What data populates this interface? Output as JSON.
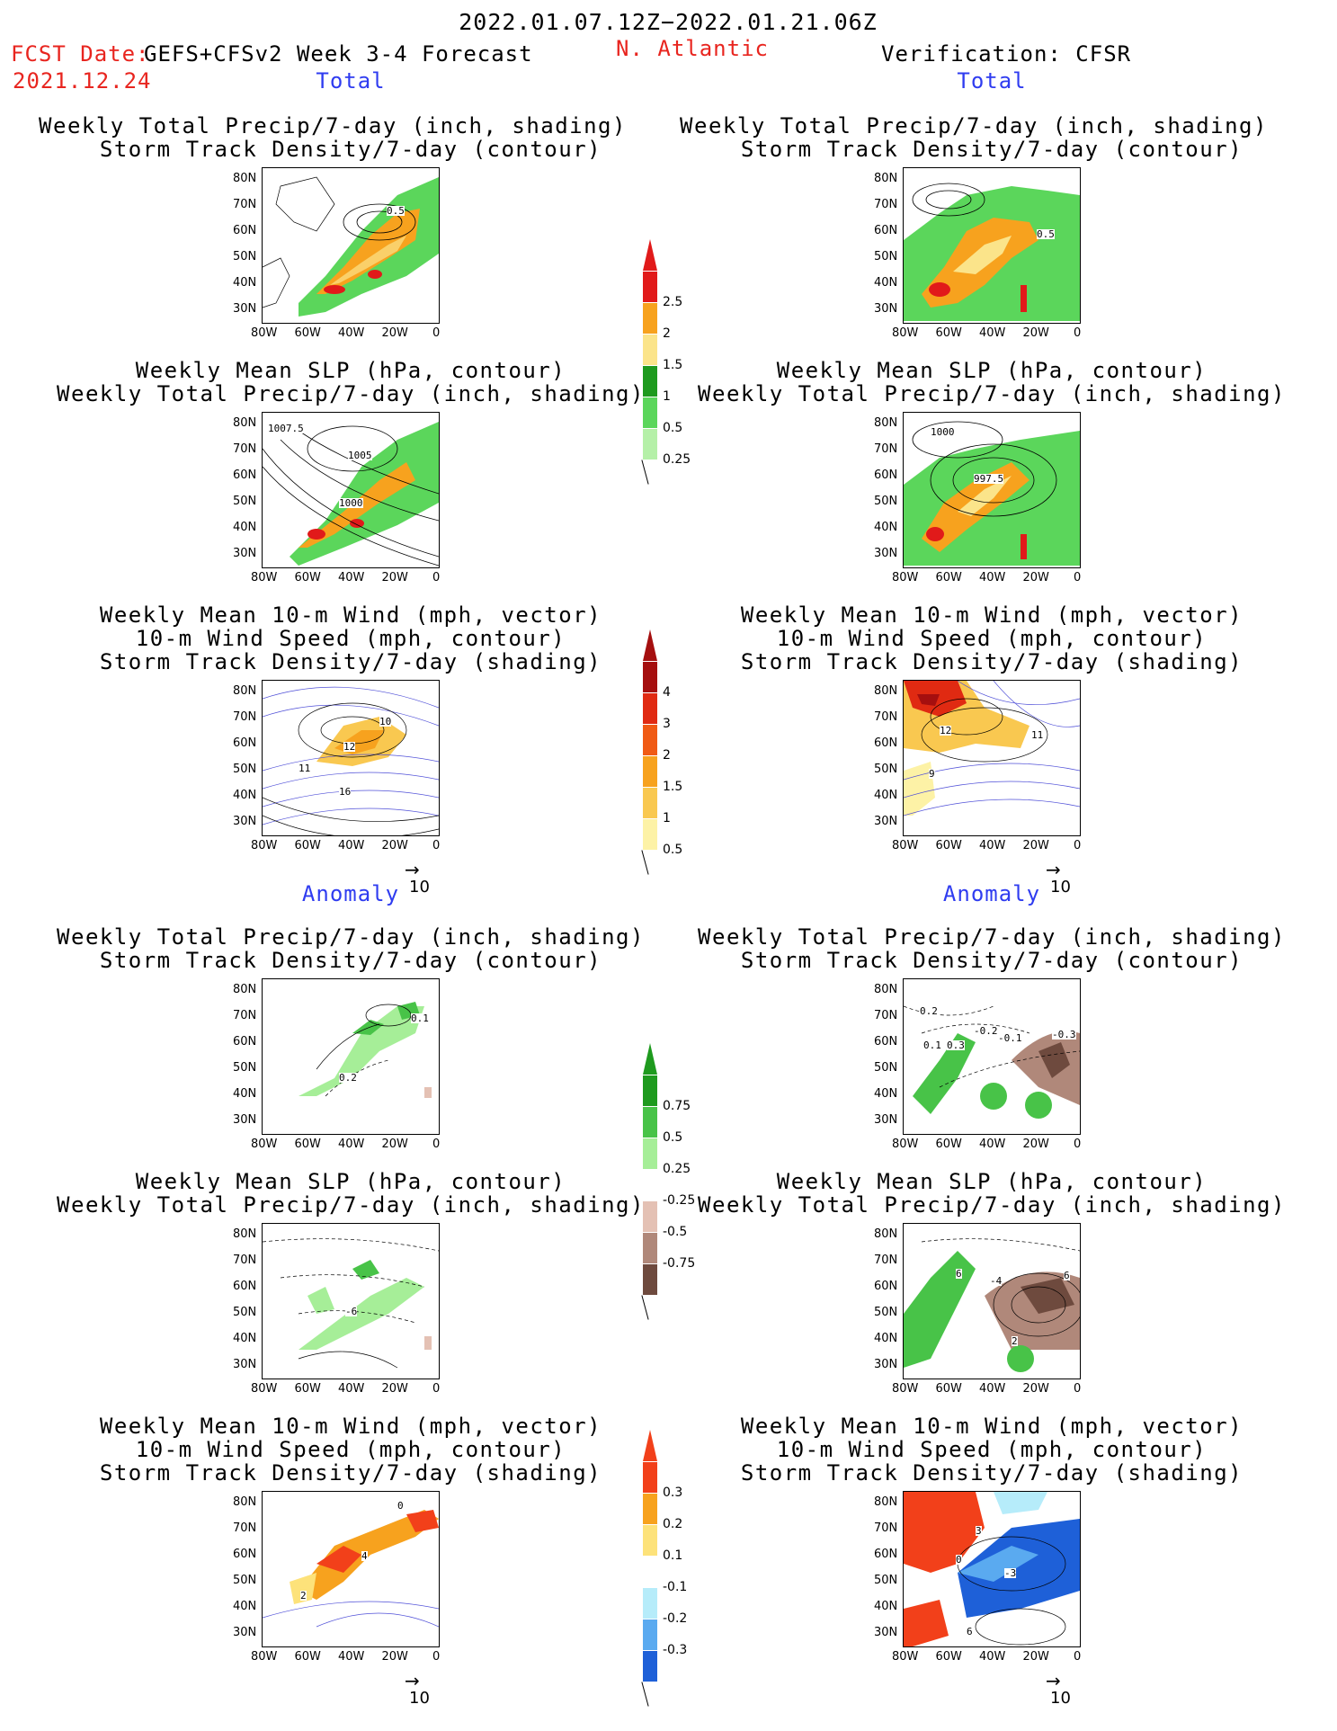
{
  "header": {
    "date_range": "2022.01.07.12Z−2022.01.21.06Z",
    "fcst_label": "FCST Date:",
    "fcst_model": "GEFS+CFSv2 Week 3-4 Forecast",
    "fcst_date": "2021.12.24",
    "region": "N. Atlantic",
    "verification": "Verification: CFSR"
  },
  "sections": {
    "total_left": "Total",
    "total_right": "Total",
    "anomaly_left": "Anomaly",
    "anomaly_right": "Anomaly"
  },
  "panel_titles": {
    "precip_track": [
      "Weekly Total Precip/7-day (inch, shading)",
      "Storm Track Density/7-day (contour)"
    ],
    "slp_precip": [
      "Weekly Mean SLP (hPa, contour)",
      "Weekly Total Precip/7-day (inch, shading)"
    ],
    "wind_track": [
      "Weekly Mean 10-m Wind (mph, vector)",
      "10-m Wind Speed (mph, contour)",
      "Storm Track Density/7-day (shading)"
    ]
  },
  "axes": {
    "lat_ticks": [
      "80N",
      "70N",
      "60N",
      "50N",
      "40N",
      "30N"
    ],
    "lon_ticks": [
      "80W",
      "60W",
      "40W",
      "20W",
      "0"
    ]
  },
  "vector_scale": "10",
  "contour_labels": {
    "p1": [
      "0.5"
    ],
    "p2": [
      "0.5"
    ],
    "p3": [
      "1007.5",
      "1005",
      "1000"
    ],
    "p4": [
      "1000",
      "997.5"
    ],
    "p5": [
      "10",
      "12",
      "11",
      "16"
    ],
    "p6": [
      "12",
      "11",
      "9"
    ],
    "p7": [
      "0.1",
      "0.2"
    ],
    "p8": [
      "0.2",
      "-0.2",
      "-0.1",
      "-0.3",
      "0.3",
      "0.1"
    ],
    "p9": [
      "-6"
    ],
    "p10": [
      "6",
      "-4",
      "6",
      "2"
    ],
    "p11": [
      "0",
      "4",
      "2"
    ],
    "p12": [
      "3",
      "0",
      "-3",
      "6"
    ]
  },
  "colorbars": {
    "precip_total": {
      "labels": [
        "2.5",
        "2",
        "1.5",
        "1",
        "0.5",
        "0.25"
      ],
      "colors": [
        "#e11a1a",
        "#f7a21e",
        "#fbe48a",
        "#1e9a1e",
        "#5bd65b",
        "#b5f0a8"
      ]
    },
    "track_total": {
      "labels": [
        "4",
        "3",
        "2",
        "1.5",
        "1",
        "0.5"
      ],
      "colors": [
        "#a50f0f",
        "#e02a12",
        "#f05a14",
        "#f7a21e",
        "#f9c850",
        "#fdf2a6"
      ]
    },
    "precip_anom": {
      "labels": [
        "0.75",
        "0.5",
        "0.25",
        "-0.25",
        "-0.5",
        "-0.75"
      ],
      "colors": [
        "#1e9a1e",
        "#48c348",
        "#a6ee98",
        "#ffffff",
        "#e4c1b4",
        "#b0887a",
        "#6e4a3e"
      ]
    },
    "track_anom": {
      "labels": [
        "0.3",
        "0.2",
        "0.1",
        "-0.1",
        "-0.2",
        "-0.3"
      ],
      "colors": [
        "#f2401a",
        "#f7a21e",
        "#fde27a",
        "#ffffff",
        "#b6ecfa",
        "#5aaaf0",
        "#1e60d8"
      ]
    }
  }
}
